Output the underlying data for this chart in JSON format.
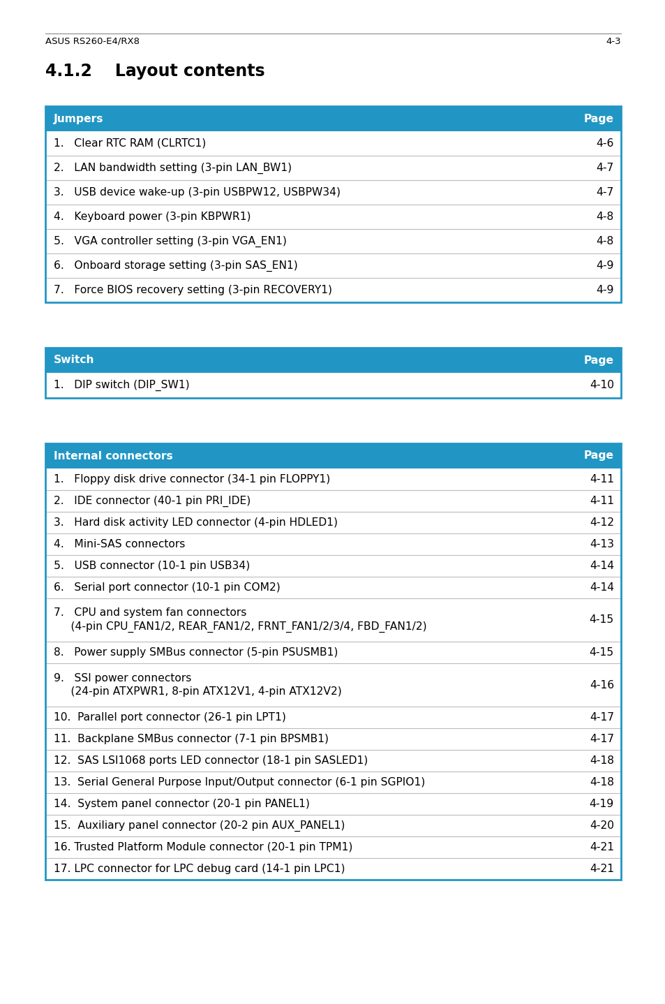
{
  "title": "4.1.2    Layout contents",
  "header_bg": "#2196C4",
  "header_text_color": "#FFFFFF",
  "border_color": "#2196C4",
  "divider_color": "#BBBBBB",
  "text_color": "#000000",
  "footer_left": "ASUS RS260-E4/RX8",
  "footer_right": "4-3",
  "tables": [
    {
      "header": [
        "Jumpers",
        "Page"
      ],
      "rows": [
        [
          "1.   Clear RTC RAM (CLRTC1)",
          "4-6"
        ],
        [
          "2.   LAN bandwidth setting (3-pin LAN_BW1)",
          "4-7"
        ],
        [
          "3.   USB device wake-up (3-pin USBPW12, USBPW34)",
          "4-7"
        ],
        [
          "4.   Keyboard power (3-pin KBPWR1)",
          "4-8"
        ],
        [
          "5.   VGA controller setting (3-pin VGA_EN1)",
          "4-8"
        ],
        [
          "6.   Onboard storage setting (3-pin SAS_EN1)",
          "4-9"
        ],
        [
          "7.   Force BIOS recovery setting (3-pin RECOVERY1)",
          "4-9"
        ]
      ]
    },
    {
      "header": [
        "Switch",
        "Page"
      ],
      "rows": [
        [
          "1.   DIP switch (DIP_SW1)",
          "4-10"
        ]
      ]
    },
    {
      "header": [
        "Internal connectors",
        "Page"
      ],
      "rows": [
        [
          "1.   Floppy disk drive connector (34-1 pin FLOPPY1)",
          "4-11",
          1
        ],
        [
          "2.   IDE connector (40-1 pin PRI_IDE)",
          "4-11",
          1
        ],
        [
          "3.   Hard disk activity LED connector (4-pin HDLED1)",
          "4-12",
          1
        ],
        [
          "4.   Mini-SAS connectors",
          "4-13",
          1
        ],
        [
          "5.   USB connector (10-1 pin USB34)",
          "4-14",
          1
        ],
        [
          "6.   Serial port connector (10-1 pin COM2)",
          "4-14",
          1
        ],
        [
          "7.   CPU and system fan connectors\n     (4-pin CPU_FAN1/2, REAR_FAN1/2, FRNT_FAN1/2/3/4, FBD_FAN1/2)",
          "4-15",
          2
        ],
        [
          "8.   Power supply SMBus connector (5-pin PSUSMB1)",
          "4-15",
          1
        ],
        [
          "9.   SSI power connectors\n     (24-pin ATXPWR1, 8-pin ATX12V1, 4-pin ATX12V2)",
          "4-16",
          2
        ],
        [
          "10.  Parallel port connector (26-1 pin LPT1)",
          "4-17",
          1
        ],
        [
          "11.  Backplane SMBus connector (7-1 pin BPSMB1)",
          "4-17",
          1
        ],
        [
          "12.  SAS LSI1068 ports LED connector (18-1 pin SASLED1)",
          "4-18",
          1
        ],
        [
          "13.  Serial General Purpose Input/Output connector (6-1 pin SGPIO1)",
          "4-18",
          1
        ],
        [
          "14.  System panel connector (20-1 pin PANEL1)",
          "4-19",
          1
        ],
        [
          "15.  Auxiliary panel connector (20-2 pin AUX_PANEL1)",
          "4-20",
          1
        ],
        [
          "16. Trusted Platform Module connector (20-1 pin TPM1)",
          "4-21",
          1
        ],
        [
          "17. LPC connector for LPC debug card (14-1 pin LPC1)",
          "4-21",
          1
        ]
      ]
    }
  ]
}
